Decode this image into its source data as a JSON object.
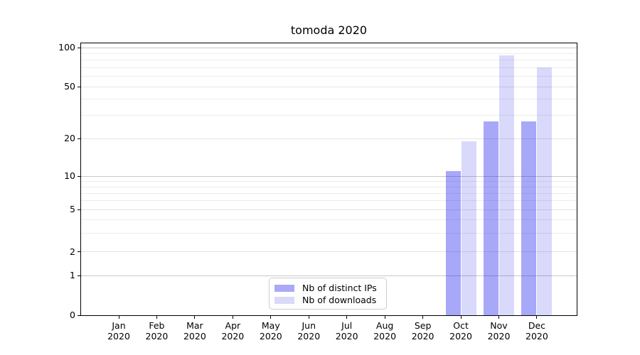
{
  "chart_data": {
    "type": "bar",
    "title": "tomoda 2020",
    "xlabel": "",
    "ylabel": "",
    "categories": [
      "Jan 2020",
      "Feb 2020",
      "Mar 2020",
      "Apr 2020",
      "May 2020",
      "Jun 2020",
      "Jul 2020",
      "Aug 2020",
      "Sep 2020",
      "Oct 2020",
      "Nov 2020",
      "Dec 2020"
    ],
    "series": [
      {
        "name": "Nb of distinct IPs",
        "legend_color": "#a9a9f7",
        "bar_fill": "rgba(0,0,238,0.34)",
        "values": [
          null,
          null,
          null,
          null,
          null,
          null,
          null,
          null,
          null,
          11,
          27,
          27
        ]
      },
      {
        "name": "Nb of downloads",
        "legend_color": "#d9d9f8",
        "bar_fill": "rgba(0,0,238,0.15)",
        "values": [
          null,
          null,
          null,
          null,
          null,
          null,
          null,
          null,
          null,
          19,
          87,
          70
        ]
      }
    ],
    "yticks": [
      0,
      1,
      2,
      5,
      10,
      20,
      50,
      100
    ],
    "y_scale": "log-like",
    "grid": "horizontal",
    "legend_position": "lower center",
    "layout": {
      "ytick_fractions": {
        "0": 0,
        "1": 0.1462,
        "2": 0.2324,
        "5": 0.389,
        "10": 0.5117,
        "20": 0.6501,
        "50": 0.8407,
        "100": 0.9843
      },
      "decade_gridlines": [
        1,
        10,
        100
      ],
      "minor_gridlines": [
        3,
        4,
        6,
        7,
        8,
        9,
        30,
        40,
        60,
        70,
        80,
        90
      ]
    }
  },
  "colors": {
    "spine": "#000000",
    "grid_decade": "#c8c8c8",
    "grid_minor": "#ededed",
    "background": "#ffffff"
  }
}
